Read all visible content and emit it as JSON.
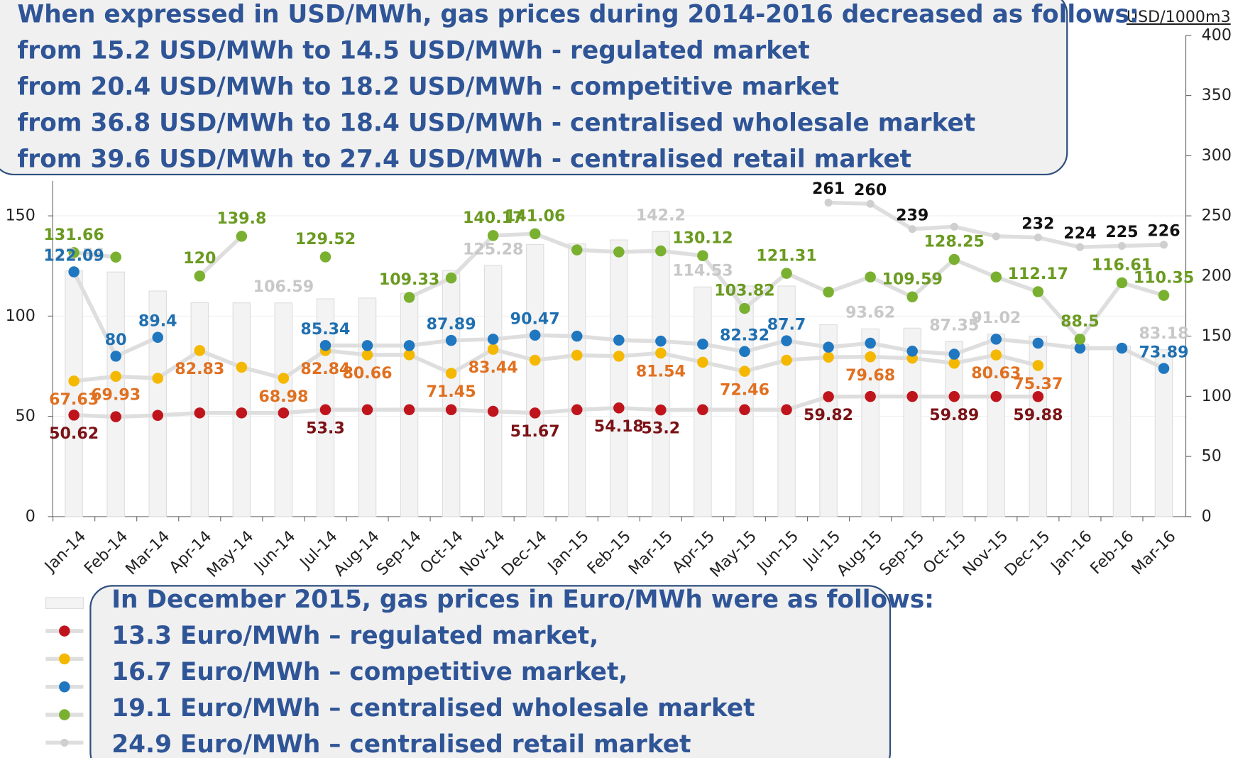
{
  "chart_data": {
    "type": "combo",
    "categories": [
      "Jan-14",
      "Feb-14",
      "Mar-14",
      "Apr-14",
      "May-14",
      "Jun-14",
      "Jul-14",
      "Aug-14",
      "Sep-14",
      "Oct-14",
      "Nov-14",
      "Dec-14",
      "Jan-15",
      "Feb-15",
      "Mar-15",
      "Apr-15",
      "May-15",
      "Jun-15",
      "Jul-15",
      "Aug-15",
      "Sep-15",
      "Oct-15",
      "Nov-15",
      "Dec-15",
      "Jan-16",
      "Feb-16",
      "Mar-16"
    ],
    "ylim": [
      0,
      150
    ],
    "yticks": [
      0,
      50,
      100,
      150
    ],
    "y2lim": [
      0,
      400
    ],
    "y2ticks": [
      0,
      50,
      100,
      150,
      200,
      250,
      300,
      350,
      400
    ],
    "y2label": "USD/1000m3",
    "grid": true,
    "series": [
      {
        "type": "bar",
        "color": "#f3f3f3",
        "label_color": "#c8c8c8",
        "values": [
          122.56,
          122,
          112.5,
          106.7,
          106.6,
          106.59,
          108.6,
          109,
          111.4,
          122.7,
          125.28,
          135.7,
          136,
          138,
          142.2,
          114.53,
          115,
          115,
          95.7,
          93.62,
          94,
          87.35,
          91.02,
          90,
          86,
          85,
          83.18
        ],
        "value_labels": [
          "122.56",
          null,
          null,
          null,
          null,
          "106.59",
          null,
          null,
          null,
          null,
          "125.28",
          null,
          null,
          null,
          "142.2",
          "114.53",
          null,
          null,
          null,
          "93.62",
          null,
          "87.35",
          "91.02",
          null,
          null,
          null,
          "83.18"
        ]
      },
      {
        "type": "line",
        "color": "#c0141c",
        "label_color": "#7b1216",
        "values": [
          50.62,
          49.8,
          50.5,
          51.7,
          51.7,
          51.7,
          53.3,
          53.3,
          53.3,
          53.3,
          52.5,
          51.67,
          53.3,
          54.18,
          53.2,
          53.3,
          53.3,
          53.3,
          59.82,
          59.9,
          59.9,
          59.89,
          59.9,
          59.88,
          null,
          null,
          null
        ],
        "value_labels": [
          "50.62",
          null,
          null,
          null,
          null,
          null,
          "53.3",
          null,
          null,
          null,
          null,
          "51.67",
          null,
          "54.18",
          "53.2",
          null,
          null,
          null,
          "59.82",
          null,
          null,
          "59.89",
          null,
          "59.88",
          null,
          null,
          null
        ]
      },
      {
        "type": "line",
        "color": "#f5b800",
        "label_color": "#e07020",
        "values": [
          67.63,
          69.93,
          69,
          82.83,
          74.5,
          68.98,
          82.84,
          80.66,
          80.7,
          71.45,
          83.44,
          78,
          80.5,
          80,
          81.54,
          77,
          72.46,
          78,
          79.5,
          79.68,
          79,
          76.5,
          80.63,
          75.37,
          null,
          null,
          null
        ],
        "value_labels": [
          "67.63",
          "69.93",
          null,
          "82.83",
          null,
          "68.98",
          "82.84",
          "80.66",
          null,
          "71.45",
          "83.44",
          null,
          null,
          null,
          "81.54",
          null,
          "72.46",
          null,
          null,
          "79.68",
          null,
          null,
          "80.63",
          "75.37",
          null,
          null,
          null
        ]
      },
      {
        "type": "line",
        "color": "#1f77c0",
        "label_color": "#1f6fb0",
        "values": [
          122.09,
          80,
          89.4,
          null,
          null,
          null,
          85.34,
          85.3,
          85.3,
          87.89,
          88.5,
          90.47,
          90,
          88,
          87.5,
          86,
          82.32,
          87.7,
          84.5,
          86.5,
          82.5,
          81,
          88.5,
          86.5,
          84,
          84,
          73.89
        ],
        "value_labels": [
          "122.09",
          "80",
          "89.4",
          null,
          null,
          null,
          "85.34",
          null,
          null,
          "87.89",
          null,
          "90.47",
          null,
          null,
          null,
          null,
          "82.32",
          "87.7",
          null,
          null,
          null,
          null,
          null,
          null,
          null,
          null,
          "73.89"
        ]
      },
      {
        "type": "line",
        "color": "#7ab030",
        "label_color": "#6a9a20",
        "values": [
          131.66,
          129.4,
          null,
          120,
          139.8,
          null,
          129.52,
          null,
          109.33,
          119,
          140.17,
          141.06,
          133,
          132,
          132.5,
          130.12,
          103.82,
          121.31,
          112,
          119.5,
          109.59,
          128.25,
          119.5,
          112.17,
          88.5,
          116.61,
          110.35
        ],
        "value_labels": [
          "131.66",
          null,
          null,
          "120",
          "139.8",
          null,
          "129.52",
          null,
          "109.33",
          null,
          "140.17",
          "141.06",
          null,
          null,
          null,
          "130.12",
          "103.82",
          "121.31",
          null,
          null,
          "109.59",
          "128.25",
          null,
          "112.17",
          "88.5",
          "116.61",
          "110.35"
        ]
      },
      {
        "type": "line",
        "axis": "y2",
        "color": "#cfcfcf",
        "label_color": "#111111",
        "values": [
          null,
          null,
          null,
          null,
          null,
          null,
          null,
          null,
          null,
          null,
          null,
          null,
          null,
          null,
          null,
          null,
          null,
          null,
          261,
          260,
          239,
          241,
          233,
          232,
          224,
          225,
          226
        ],
        "value_labels": [
          null,
          null,
          null,
          null,
          null,
          null,
          null,
          null,
          null,
          null,
          null,
          null,
          null,
          null,
          null,
          null,
          null,
          null,
          "261",
          "260",
          "239",
          null,
          null,
          "232",
          "224",
          "225",
          "226"
        ]
      }
    ]
  },
  "top_note": [
    "When expressed in USD/MWh, gas prices during 2014-2016 decreased as follows:",
    "from 15.2 USD/MWh to 14.5 USD/MWh - regulated market",
    "from 20.4 USD/MWh to 18.2 USD/MWh - competitive market",
    "from 36.8 USD/MWh to 18.4 USD/MWh - centralised wholesale market",
    "from 39.6 USD/MWh to 27.4 USD/MWh - centralised retail market"
  ],
  "bottom_note": [
    "In December 2015, gas prices in Euro/MWh were as follows:",
    "13.3 Euro/MWh – regulated market,",
    "16.7 Euro/MWh – competitive market,",
    "19.1 Euro/MWh – centralised wholesale market",
    "24.9 Euro/MWh – centralised retail market"
  ]
}
